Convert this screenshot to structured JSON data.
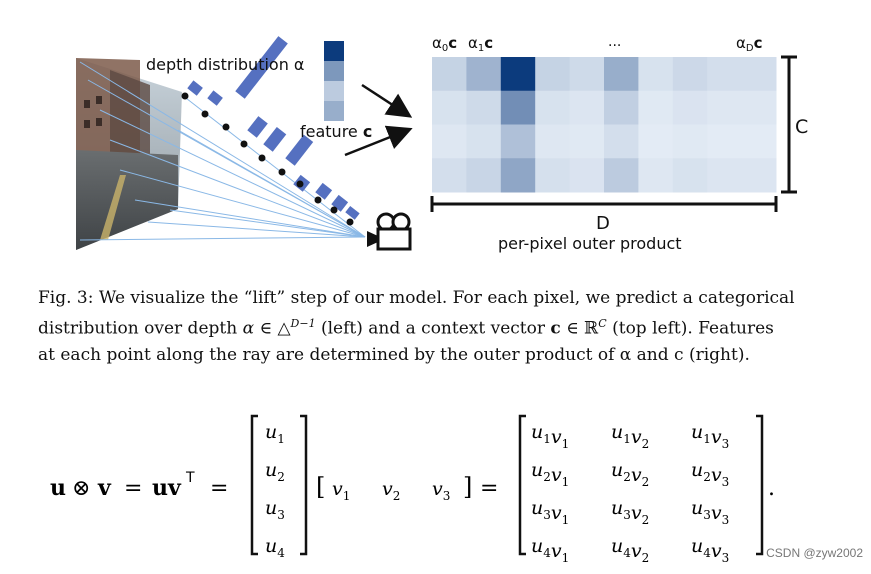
{
  "figure": {
    "depth_label": "depth distribution α",
    "feature_label": "feature ",
    "feature_symbol": "c",
    "alpha_labels": [
      {
        "sub": "0",
        "label": "α"
      },
      {
        "sub": "1",
        "label": "α"
      },
      {
        "sub": "D",
        "label": "α"
      }
    ],
    "alpha_symbol": "c",
    "ellipsis": "...",
    "c_axis": "C",
    "d_axis": "D",
    "outer_product_label": "per-pixel outer product",
    "heatmap": [
      [
        0.18,
        0.35,
        1.0,
        0.18,
        0.14,
        0.38,
        0.1,
        0.15,
        0.12,
        0.12
      ],
      [
        0.1,
        0.14,
        0.55,
        0.1,
        0.08,
        0.2,
        0.06,
        0.09,
        0.07,
        0.07
      ],
      [
        0.07,
        0.1,
        0.28,
        0.07,
        0.06,
        0.12,
        0.05,
        0.06,
        0.05,
        0.05
      ],
      [
        0.12,
        0.17,
        0.42,
        0.11,
        0.09,
        0.22,
        0.07,
        0.1,
        0.08,
        0.08
      ]
    ],
    "feature_vector": [
      1.0,
      0.5,
      0.22,
      0.38
    ],
    "colors": {
      "dark_blue": "#0c3b7d",
      "accent_blue": "#5570c0",
      "ray": "#8ab8e6"
    }
  },
  "caption": {
    "line1": "Fig. 3: We visualize the “lift” step of our model. For each pixel, we predict a categorical",
    "line2_a": "distribution over depth ",
    "line2_alpha": "α",
    "line2_b": " ∈ △",
    "line2_sup1": "D−1",
    "line2_c": " (left) and a context vector ",
    "line2_cvec": "c",
    "line2_d": " ∈ ℝ",
    "line2_sup2": "C",
    "line2_e": " (top left). Features",
    "line3": "at each point along the ray are determined by the outer product of α and c (right)."
  },
  "equation": {
    "lhs_u": "u",
    "lhs_otimes": "⊗",
    "lhs_v": "v",
    "eq1": "=",
    "uv": "uv",
    "transpose": "T",
    "eq2": "=",
    "column": [
      "u1",
      "u2",
      "u3",
      "u4"
    ],
    "row": [
      "v1",
      "v2",
      "v3"
    ],
    "eq3": "=",
    "product": [
      [
        "u1v1",
        "u1v2",
        "u1v3"
      ],
      [
        "u2v1",
        "u2v2",
        "u2v3"
      ],
      [
        "u3v1",
        "u3v2",
        "u3v3"
      ],
      [
        "u4v1",
        "u4v2",
        "u4v3"
      ]
    ],
    "period": "."
  },
  "watermark": "CSDN @zyw2002"
}
